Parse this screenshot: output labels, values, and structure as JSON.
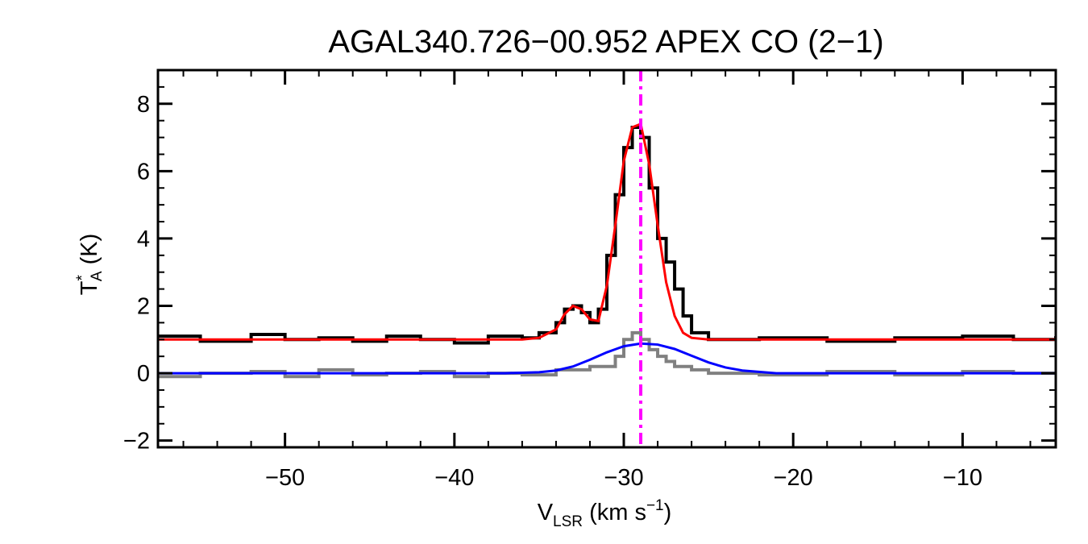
{
  "chart_data": {
    "type": "line",
    "title": "AGAL340.726−00.952  APEX CO (2−1)",
    "xlabel": {
      "main": "V",
      "sub": "LSR",
      "unit_open": " (km s",
      "sup": "−1",
      "unit_close": ")"
    },
    "ylabel": {
      "main": "T",
      "sup": "*",
      "sub": "A",
      "unit": " (K)"
    },
    "xlim": [
      -57.5,
      -4.5
    ],
    "ylim": [
      -2.2,
      9.0
    ],
    "x_ticks": [
      {
        "value": -50,
        "label": "−50"
      },
      {
        "value": -40,
        "label": "−40"
      },
      {
        "value": -30,
        "label": "−30"
      },
      {
        "value": -20,
        "label": "−20"
      },
      {
        "value": -10,
        "label": "−10"
      }
    ],
    "y_ticks": [
      {
        "value": -2,
        "label": "−2"
      },
      {
        "value": 0,
        "label": "0"
      },
      {
        "value": 2,
        "label": "2"
      },
      {
        "value": 4,
        "label": "4"
      },
      {
        "value": 6,
        "label": "6"
      },
      {
        "value": 8,
        "label": "8"
      }
    ],
    "grid": false,
    "legend": "none",
    "marker_velocity": -29.0,
    "series": [
      {
        "color": "#000000",
        "style": "histogram",
        "x": [
          -57.5,
          -55.0,
          -52.0,
          -50.0,
          -48.0,
          -46.0,
          -44.0,
          -42.0,
          -40.0,
          -38.0,
          -36.0,
          -35.0,
          -34.0,
          -33.5,
          -33.0,
          -32.5,
          -32.0,
          -31.5,
          -31.0,
          -30.5,
          -30.0,
          -29.5,
          -29.0,
          -28.5,
          -28.0,
          -27.5,
          -27.0,
          -26.5,
          -26.0,
          -25.0,
          -22.0,
          -18.0,
          -14.0,
          -10.0,
          -7.0,
          -4.5
        ],
        "y": [
          1.1,
          0.95,
          1.15,
          1.0,
          1.05,
          0.95,
          1.1,
          1.0,
          0.9,
          1.1,
          1.05,
          1.2,
          1.5,
          1.9,
          2.0,
          1.8,
          1.5,
          1.9,
          3.5,
          5.3,
          6.7,
          7.3,
          7.0,
          5.5,
          4.0,
          3.3,
          2.5,
          1.7,
          1.2,
          1.0,
          1.05,
          0.95,
          1.05,
          1.1,
          1.0,
          1.1
        ]
      },
      {
        "color": "#808080",
        "style": "histogram",
        "x": [
          -57.5,
          -55.0,
          -52.0,
          -50.0,
          -48.0,
          -46.0,
          -44.0,
          -42.0,
          -40.0,
          -38.0,
          -36.0,
          -34.0,
          -32.0,
          -30.5,
          -30.0,
          -29.5,
          -29.0,
          -28.5,
          -28.0,
          -27.5,
          -27.0,
          -26.0,
          -25.0,
          -22.0,
          -18.0,
          -14.0,
          -10.0,
          -7.0,
          -4.5
        ],
        "y": [
          -0.1,
          0.0,
          0.05,
          -0.1,
          0.1,
          -0.05,
          0.0,
          0.05,
          -0.1,
          0.0,
          -0.05,
          0.1,
          0.2,
          0.5,
          1.0,
          1.2,
          1.0,
          0.7,
          0.5,
          0.35,
          0.2,
          0.1,
          0.0,
          -0.05,
          0.05,
          -0.05,
          0.05,
          0.0,
          -0.05
        ]
      },
      {
        "color": "#ff0000",
        "style": "line",
        "x": [
          -57.5,
          -40.0,
          -36.0,
          -35.0,
          -34.0,
          -33.5,
          -33.0,
          -32.5,
          -32.0,
          -31.5,
          -31.0,
          -30.5,
          -30.0,
          -29.5,
          -29.0,
          -28.5,
          -28.0,
          -27.5,
          -27.0,
          -26.5,
          -26.0,
          -25.0,
          -20.0,
          -4.5
        ],
        "y": [
          1.0,
          1.0,
          1.0,
          1.05,
          1.3,
          1.75,
          2.0,
          1.9,
          1.6,
          1.55,
          2.6,
          4.4,
          6.3,
          7.3,
          7.4,
          6.2,
          4.4,
          2.7,
          1.7,
          1.2,
          1.05,
          1.0,
          1.0,
          1.0
        ]
      },
      {
        "color": "#0000ff",
        "style": "line",
        "x": [
          -57.5,
          -40.0,
          -37.0,
          -35.0,
          -34.0,
          -33.0,
          -32.0,
          -31.0,
          -30.0,
          -29.0,
          -28.0,
          -27.0,
          -26.0,
          -25.0,
          -24.0,
          -23.0,
          -21.0,
          -4.5
        ],
        "y": [
          0.0,
          0.0,
          0.0,
          0.03,
          0.08,
          0.2,
          0.4,
          0.62,
          0.8,
          0.88,
          0.85,
          0.72,
          0.52,
          0.32,
          0.17,
          0.08,
          0.0,
          0.0
        ]
      }
    ]
  }
}
